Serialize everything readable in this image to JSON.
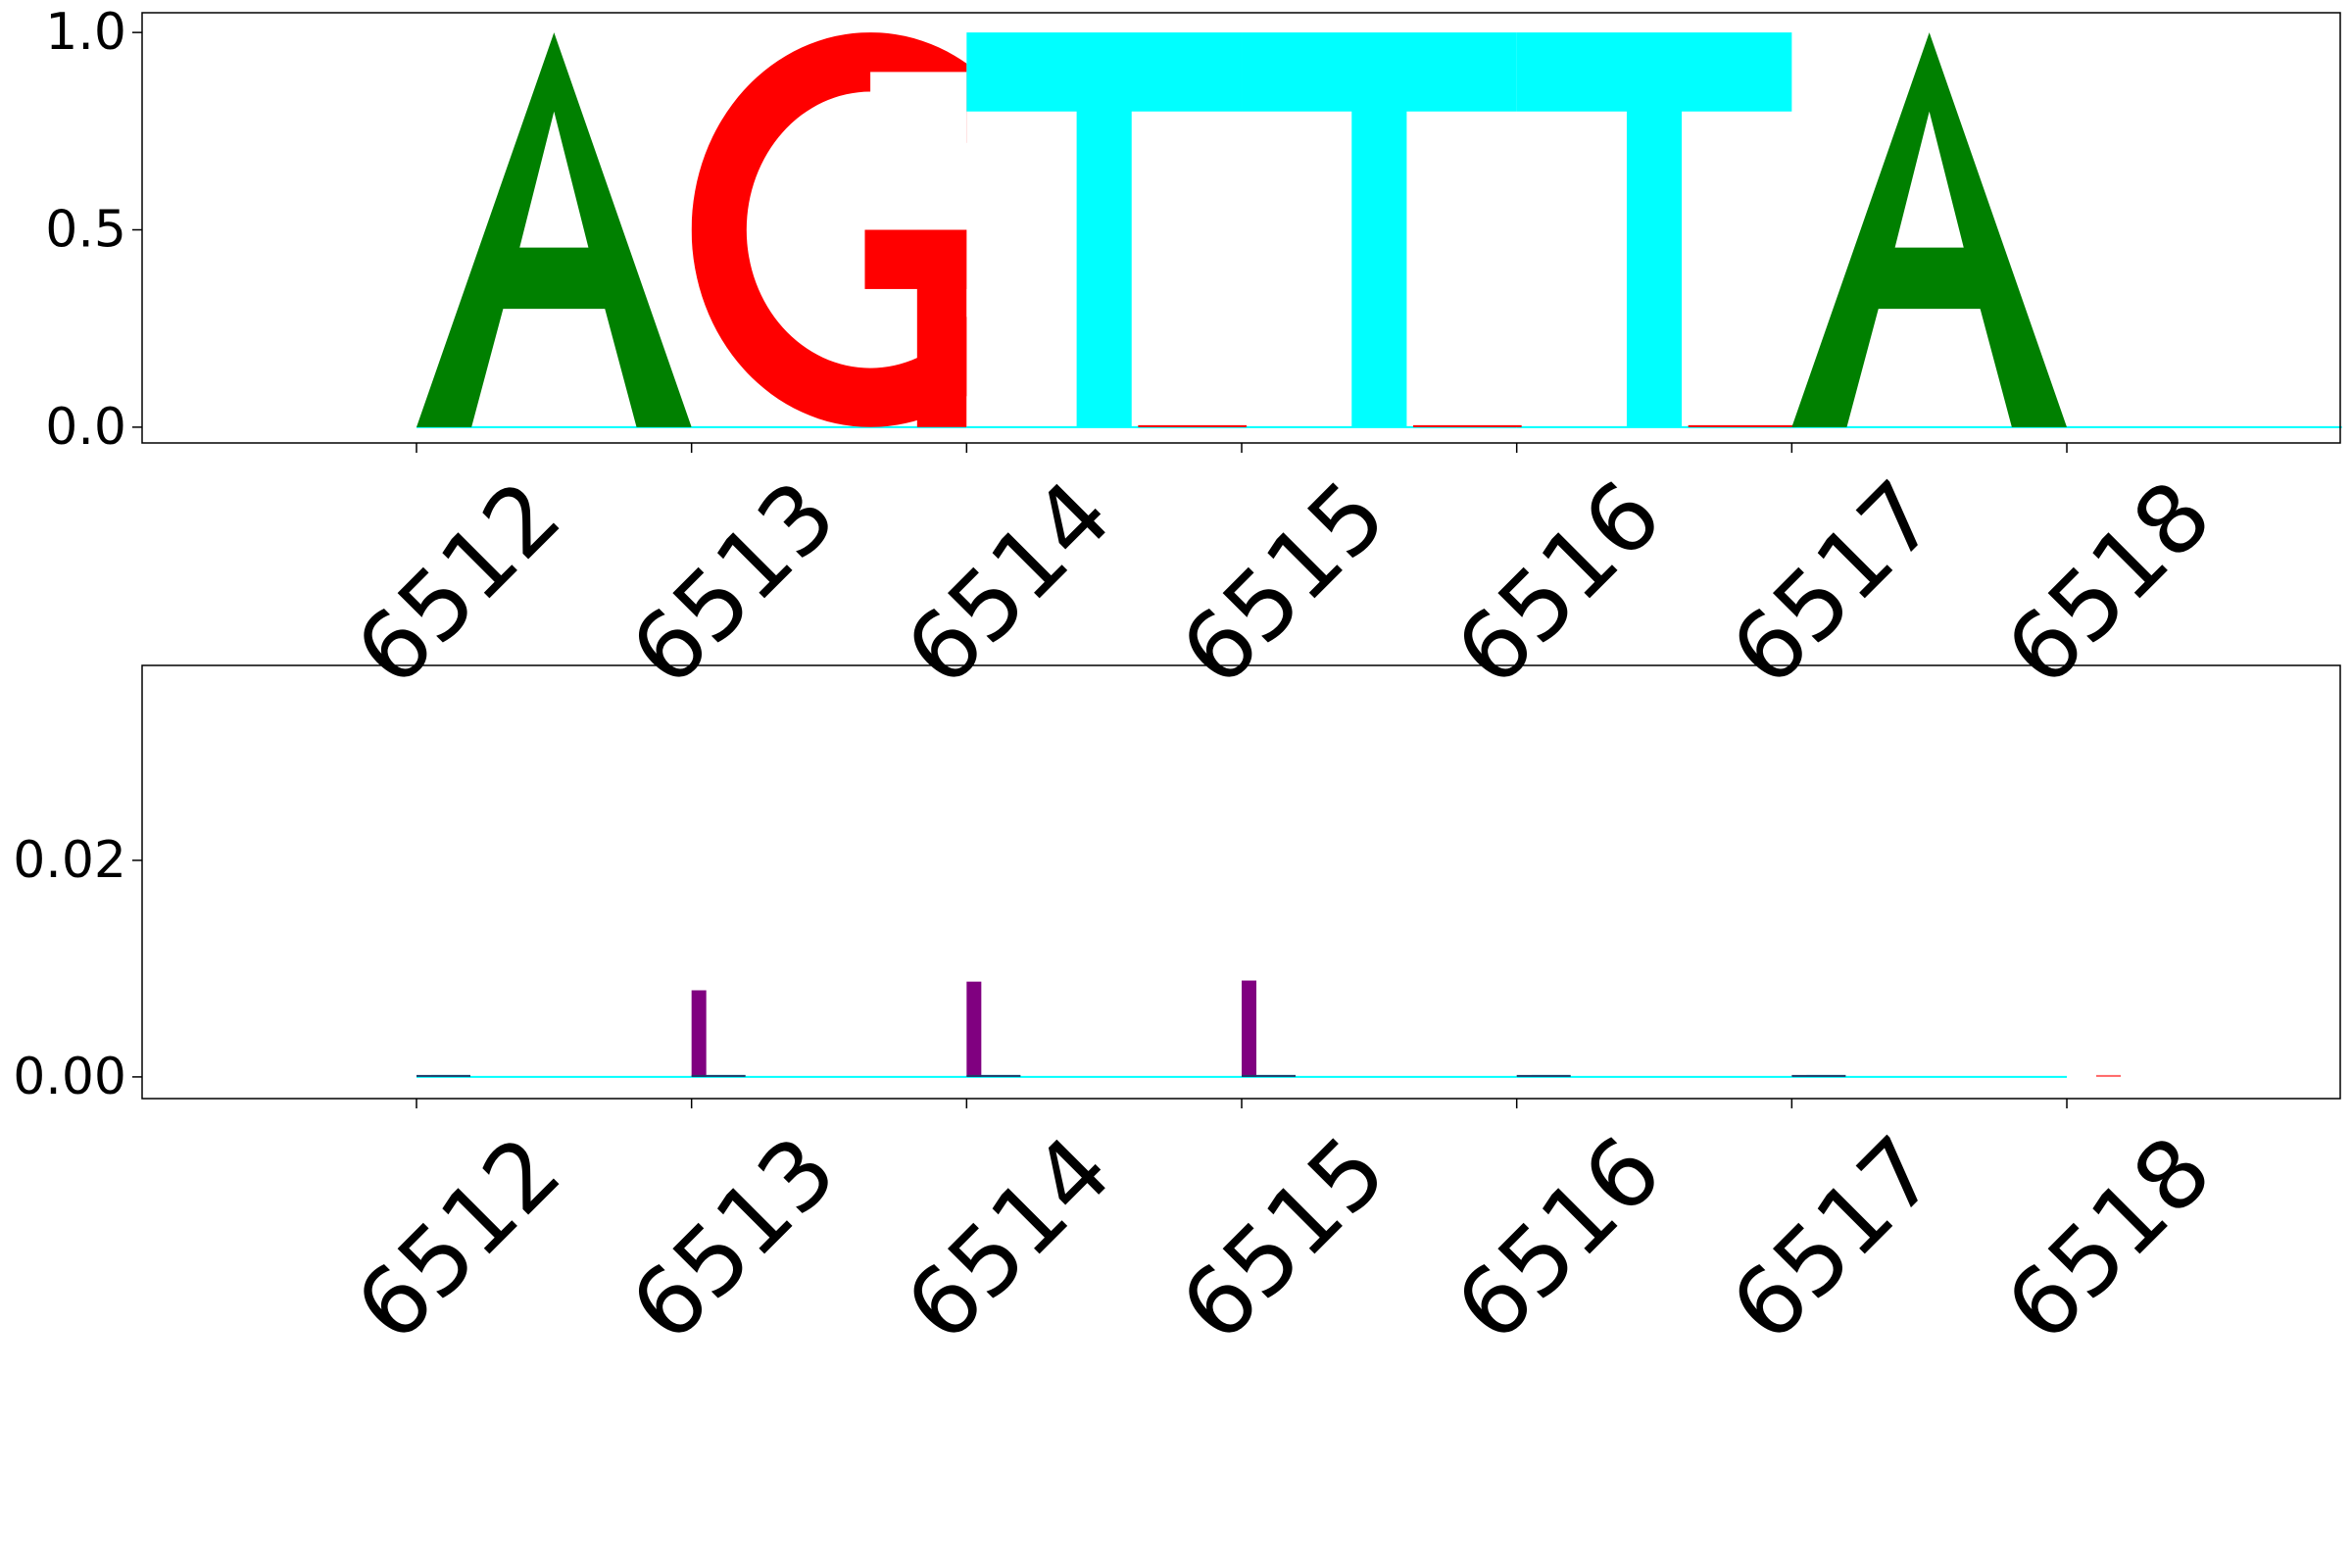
{
  "chart_data": [
    {
      "type": "sequence-logo",
      "panel": "top",
      "x": [
        6512,
        6513,
        6514,
        6515,
        6516,
        6517,
        6518
      ],
      "x_tick_labels": [
        "6512",
        "6513",
        "6514",
        "6515",
        "6516",
        "6517",
        "6518"
      ],
      "ylim": [
        -0.04,
        1.05
      ],
      "y_ticks": [
        0.0,
        0.5,
        1.0
      ],
      "y_tick_labels": [
        "0.0",
        "0.5",
        "1.0"
      ],
      "grid": false,
      "letter_colors": {
        "A": "#008000",
        "G": "#ff0000",
        "T": "#00ffff",
        "C": "#0000ff"
      },
      "letters": [
        {
          "position": 6512,
          "letter": "A",
          "value": 1.0
        },
        {
          "position": 6513,
          "letter": "G",
          "value": 1.0
        },
        {
          "position": 6514,
          "letter": "T",
          "value": 1.0
        },
        {
          "position": 6515,
          "letter": "T",
          "value": 1.0
        },
        {
          "position": 6516,
          "letter": "T",
          "value": 1.0
        },
        {
          "position": 6517,
          "letter": "A",
          "value": 1.0
        }
      ]
    },
    {
      "type": "bar",
      "panel": "bottom",
      "x": [
        6512,
        6513,
        6514,
        6515,
        6516,
        6517,
        6518
      ],
      "x_tick_labels": [
        "6512",
        "6513",
        "6514",
        "6515",
        "6516",
        "6517",
        "6518"
      ],
      "ylim": [
        -0.002,
        0.038
      ],
      "y_ticks": [
        0.0,
        0.02
      ],
      "y_tick_labels": [
        "0.00",
        "0.02"
      ],
      "grid": false,
      "series_colors": {
        "purple": "#800080",
        "cyan": "#00ffff",
        "navy": "#1f3a68",
        "red": "#ff6666"
      },
      "series": [
        {
          "color_key": "purple",
          "values": [
            0.0,
            0.008,
            0.0088,
            0.0089,
            0.0,
            0.0,
            0.0
          ]
        },
        {
          "color_key": "cyan",
          "values": [
            0.0001,
            0.0001,
            0.0001,
            0.0001,
            0.0001,
            0.0001,
            0.0
          ]
        },
        {
          "color_key": "navy",
          "values": [
            0.0001,
            0.0001,
            0.0001,
            0.0001,
            0.0001,
            0.0001,
            0.0
          ]
        },
        {
          "color_key": "red",
          "values": [
            0.0,
            0.0,
            0.0,
            0.0,
            0.0,
            0.0,
            0.0001
          ]
        }
      ]
    }
  ]
}
